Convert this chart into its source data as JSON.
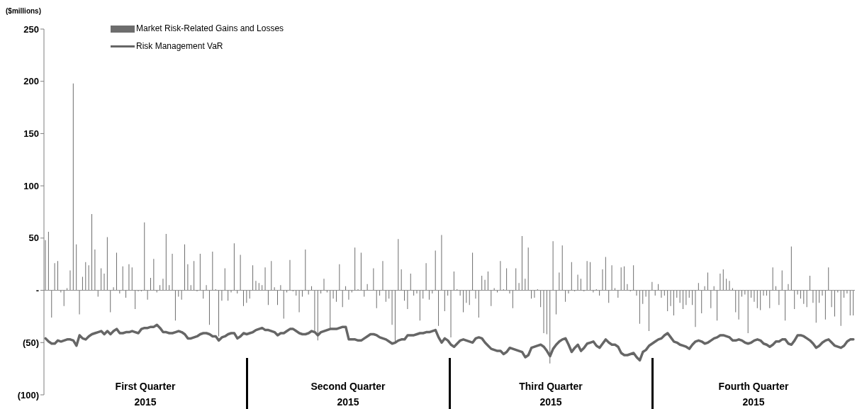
{
  "chart_data": {
    "type": "bar",
    "ylabel": "($millions)",
    "categories": [
      null,
      null,
      null,
      null,
      null,
      null,
      null,
      null,
      null,
      null,
      null,
      null,
      null,
      null,
      null,
      null,
      null,
      null,
      null,
      null,
      null,
      null,
      null,
      null,
      null,
      null,
      null,
      null,
      null,
      null,
      null,
      null,
      null,
      null,
      null,
      null,
      null,
      null,
      null,
      null,
      null,
      null,
      null,
      null,
      null,
      null,
      null,
      null,
      null,
      null,
      null,
      null,
      null,
      null,
      null,
      null,
      null,
      null,
      null,
      null,
      null,
      null,
      null,
      null,
      null,
      null,
      null,
      null,
      null,
      null,
      null,
      null,
      null,
      null,
      null,
      null,
      null,
      null,
      null,
      null,
      null,
      null,
      null,
      null,
      null,
      null,
      null,
      null,
      null,
      null,
      null,
      null,
      null,
      null,
      null,
      null,
      null,
      null,
      null,
      null,
      null,
      null,
      null,
      null,
      null,
      null,
      null,
      null,
      null,
      null,
      null,
      null,
      null,
      null,
      null,
      null,
      null,
      null,
      null,
      null,
      null,
      null,
      null,
      null,
      null,
      null,
      null,
      null,
      null,
      null,
      null,
      null,
      null,
      null,
      null,
      null,
      null,
      null,
      null,
      null,
      null,
      null,
      null,
      null,
      null,
      null,
      null,
      null,
      null,
      null,
      null,
      null,
      null,
      null,
      null,
      null,
      null,
      null,
      null,
      null,
      null,
      null,
      null,
      null,
      null,
      null,
      null,
      null,
      null,
      null,
      null,
      null,
      null,
      null,
      null,
      null,
      null,
      null,
      null,
      null,
      null,
      null,
      null,
      null,
      null,
      null,
      null,
      null,
      null,
      null,
      null,
      null,
      null,
      null,
      null,
      null,
      null,
      null,
      null,
      null,
      null,
      null,
      null,
      null,
      null,
      null,
      null,
      null,
      null,
      null,
      null,
      null,
      null,
      null,
      null,
      null,
      null,
      null,
      null,
      null,
      null,
      null,
      null,
      null,
      null,
      null,
      null,
      null,
      null,
      null,
      null,
      null,
      null,
      null,
      null,
      null,
      null,
      null,
      null,
      null,
      null,
      null,
      null,
      null,
      null,
      null,
      null,
      null,
      null,
      null,
      null,
      null,
      null,
      null,
      null,
      null,
      null,
      null,
      null,
      null,
      null,
      null
    ],
    "series": [
      {
        "name": "Market Risk-Related Gains and Losses",
        "color": "#6d6d6d",
        "values": [
          48,
          56,
          -26,
          26,
          28,
          -2,
          -15,
          2,
          19,
          198,
          44,
          -23,
          13,
          27,
          24,
          73,
          39,
          -6,
          21,
          16,
          51,
          -21,
          3,
          36,
          -3,
          23,
          -7,
          25,
          22,
          -18,
          -1,
          -1,
          65,
          -9,
          12,
          30,
          -2,
          5,
          11,
          54,
          5,
          35,
          -29,
          -6,
          -9,
          44,
          25,
          5,
          28,
          -1,
          35,
          -8,
          5,
          -33,
          37,
          1,
          -44,
          -10,
          21,
          -10,
          -2,
          45,
          -3,
          34,
          -15,
          -12,
          -8,
          24,
          9,
          7,
          5,
          22,
          -14,
          28,
          3,
          -14,
          5,
          -27,
          -2,
          29,
          -1,
          -5,
          -21,
          -6,
          39,
          -4,
          4,
          -39,
          -48,
          -3,
          11,
          -2,
          -37,
          -8,
          -11,
          25,
          -16,
          4,
          -9,
          -2,
          41,
          1,
          36,
          -6,
          6,
          null,
          21,
          -17,
          -5,
          28,
          -11,
          -8,
          -33,
          -50,
          49,
          20,
          -10,
          -18,
          16,
          -5,
          -3,
          -29,
          -8,
          26,
          -9,
          -3,
          38,
          -34,
          53,
          -20,
          -5,
          -45,
          18,
          1,
          -5,
          -21,
          -12,
          -14,
          36,
          -8,
          -26,
          14,
          10,
          18,
          -15,
          2,
          -2,
          28,
          1,
          21,
          -3,
          -17,
          21,
          7,
          52,
          11,
          41,
          -8,
          -7,
          1,
          -16,
          -41,
          -42,
          -70,
          47,
          -23,
          17,
          43,
          -11,
          -3,
          27,
          -1,
          15,
          11,
          -1,
          28,
          27,
          -2,
          1,
          -5,
          20,
          32,
          -12,
          24,
          2,
          -7,
          22,
          23,
          6,
          -1,
          24,
          -5,
          -32,
          -13,
          -6,
          -39,
          8,
          -5,
          6,
          -7,
          -5,
          -20,
          -15,
          -24,
          -7,
          -12,
          -18,
          -14,
          -7,
          -14,
          -35,
          7,
          -22,
          4,
          17,
          -17,
          4,
          -29,
          16,
          20,
          11,
          9,
          2,
          -21,
          -28,
          -6,
          -4,
          -41,
          -7,
          -11,
          -17,
          -19,
          -5,
          -5,
          -17,
          22,
          4,
          -14,
          19,
          -29,
          6,
          42,
          -18,
          -4,
          -8,
          -13,
          -16,
          14,
          -12,
          -31,
          -12,
          -5,
          -28,
          22,
          -16,
          -25,
          -2,
          -34,
          -7,
          -3,
          -24,
          -24
        ]
      },
      {
        "name": "Risk Management VaR",
        "type": "line",
        "color": "#666666",
        "values": [
          -46,
          -49,
          -51,
          -51,
          -48,
          -49,
          -48,
          -47,
          -47,
          -48,
          -53,
          -43,
          -46,
          -47,
          -44,
          -42,
          -41,
          -40,
          -39,
          -42,
          -39,
          -42,
          -39,
          -37,
          -41,
          -41,
          -40,
          -40,
          -39,
          -40,
          -41,
          -37,
          -36,
          -36,
          -35,
          -35,
          -33,
          -36,
          -40,
          -40,
          -41,
          -41,
          -40,
          -39,
          -40,
          -42,
          -46,
          -46,
          -45,
          -44,
          -42,
          -41,
          -41,
          -42,
          -44,
          -44,
          -48,
          -45,
          -44,
          -42,
          -41,
          -41,
          -46,
          -44,
          -41,
          -42,
          -41,
          -40,
          -38,
          -37,
          -36,
          -38,
          -38,
          -39,
          -40,
          -43,
          -41,
          -41,
          -39,
          -37,
          -37,
          -39,
          -41,
          -42,
          -42,
          -41,
          -39,
          -40,
          -43,
          -40,
          -39,
          -38,
          -37,
          -37,
          -37,
          -36,
          -35,
          -35,
          -47,
          -47,
          -47,
          -48,
          -48,
          -46,
          -44,
          -42,
          -42,
          -43,
          -45,
          -46,
          -47,
          -49,
          -51,
          -50,
          -48,
          -47,
          -47,
          -43,
          -43,
          -43,
          -42,
          -41,
          -41,
          -40,
          -40,
          -39,
          -38,
          -45,
          -50,
          -46,
          -48,
          -52,
          -54,
          -51,
          -48,
          -47,
          -48,
          -49,
          -50,
          -46,
          -45,
          -46,
          -50,
          -53,
          -56,
          -57,
          -58,
          -58,
          -61,
          -59,
          -55,
          -56,
          -57,
          -58,
          -59,
          -64,
          -62,
          -55,
          -54,
          -53,
          -52,
          -54,
          -58,
          -63,
          -56,
          -52,
          -49,
          -47,
          -46,
          -52,
          -59,
          -55,
          -52,
          -58,
          -55,
          -51,
          -50,
          -49,
          -53,
          -55,
          -51,
          -47,
          -50,
          -52,
          -52,
          -54,
          -60,
          -62,
          -62,
          -61,
          -60,
          -64,
          -67,
          -59,
          -57,
          -53,
          -51,
          -49,
          -47,
          -46,
          -43,
          -41,
          -45,
          -49,
          -50,
          -52,
          -53,
          -54,
          -56,
          -52,
          -49,
          -48,
          -49,
          -51,
          -50,
          -48,
          -46,
          -45,
          -43,
          -43,
          -44,
          -45,
          -48,
          -48,
          -47,
          -48,
          -50,
          -51,
          -50,
          -48,
          -47,
          -48,
          -51,
          -52,
          -54,
          -52,
          -49,
          -49,
          -47,
          -47,
          -51,
          -52,
          -48,
          -43,
          -43,
          -44,
          -46,
          -48,
          -51,
          -55,
          -53,
          -50,
          -48,
          -47,
          -50,
          -53,
          -54,
          -55,
          -53,
          -49,
          -47,
          -47
        ]
      }
    ],
    "ylim": [
      -100,
      250
    ],
    "yticks": [
      {
        "value": -100,
        "label": "(100)"
      },
      {
        "value": -50,
        "label": "(50)"
      },
      {
        "value": 0,
        "label": "-"
      },
      50,
      100,
      150,
      200,
      250
    ],
    "annotations": [
      "First Quarter\n2015",
      "Second Quarter\n2015",
      "Third Quarter\n2015",
      "Fourth Quarter\n2015"
    ],
    "ref_lines": [
      {
        "axis": "y",
        "value": 0,
        "color": "#8c8c8c"
      }
    ],
    "legend": "top left",
    "grid": false,
    "line_style": "solid",
    "marker": "none"
  }
}
